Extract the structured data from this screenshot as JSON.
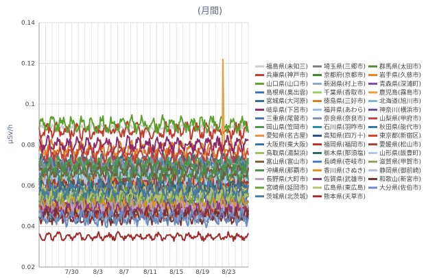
{
  "chart_data": {
    "type": "line",
    "title": "(月間)",
    "xlabel": "",
    "ylabel": "μSv/h",
    "ylim": [
      0.02,
      0.14
    ],
    "yticks": [
      "0.02",
      "0.04",
      "0.06",
      "0.08",
      "0.1",
      "0.12",
      "0.14"
    ],
    "xlim": [
      "7/25",
      "8/26"
    ],
    "xticks": [
      "7/30",
      "8/3",
      "8/7",
      "8/11",
      "8/15",
      "8/19",
      "8/23"
    ],
    "grid": true,
    "legend_position": "right",
    "series": [
      {
        "name": "福島県(未知三)",
        "color": "#cccccc",
        "base": 0.088,
        "amp": 0.002
      },
      {
        "name": "埼玉県(三郷市)",
        "color": "#7a7a7a",
        "base": 0.052,
        "amp": 0.004
      },
      {
        "name": "群馬県(太田市)",
        "color": "#4a8a3a",
        "base": 0.057,
        "amp": 0.004
      },
      {
        "name": "兵庫県(神戸市)",
        "color": "#c0392b",
        "base": 0.087,
        "amp": 0.004
      },
      {
        "name": "京都府(京都市)",
        "color": "#3f7f2a",
        "base": 0.065,
        "amp": 0.004
      },
      {
        "name": "岩手県(久慈市)",
        "color": "#e08020",
        "base": 0.064,
        "amp": 0.004
      },
      {
        "name": "山口県(山口市)",
        "color": "#5aa02c",
        "base": 0.09,
        "amp": 0.004
      },
      {
        "name": "新潟県(村上市)",
        "color": "#8aa5d0",
        "base": 0.07,
        "amp": 0.004
      },
      {
        "name": "青森県(深浦町)",
        "color": "#7a4a9a",
        "base": 0.064,
        "amp": 0.004
      },
      {
        "name": "島根県(奥出雲)",
        "color": "#3a6fb0",
        "base": 0.07,
        "amp": 0.004
      },
      {
        "name": "千葉県(香取市)",
        "color": "#9acd68",
        "base": 0.068,
        "amp": 0.004
      },
      {
        "name": "鹿児島(霧島市)",
        "color": "#e5a040",
        "base": 0.072,
        "amp": 0.004
      },
      {
        "name": "宮城県(大河原)",
        "color": "#2b6a8a",
        "base": 0.072,
        "amp": 0.004
      },
      {
        "name": "徳島県(三好市)",
        "color": "#e07a20",
        "base": 0.078,
        "amp": 0.004
      },
      {
        "name": "北海道(旭川市)",
        "color": "#7fb0d8",
        "base": 0.065,
        "amp": 0.004
      },
      {
        "name": "岐阜県(下呂市)",
        "color": "#8a2a6a",
        "base": 0.08,
        "amp": 0.004
      },
      {
        "name": "福井県(あわら)",
        "color": "#9ab8d8",
        "base": 0.058,
        "amp": 0.004
      },
      {
        "name": "神奈川(横浜市)",
        "color": "#6a4a8a",
        "base": 0.052,
        "amp": 0.004
      },
      {
        "name": "三重県(尾鷲市)",
        "color": "#4a6ab0",
        "base": 0.068,
        "amp": 0.004
      },
      {
        "name": "奈良県(奈良市)",
        "color": "#8090a0",
        "base": 0.07,
        "amp": 0.004
      },
      {
        "name": "山梨県(甲府市)",
        "color": "#c04040",
        "base": 0.075,
        "amp": 0.004
      },
      {
        "name": "岡山県(笠岡市)",
        "color": "#4a9a4a",
        "base": 0.07,
        "amp": 0.004
      },
      {
        "name": "石川県(羽咋市)",
        "color": "#2a8aa0",
        "base": 0.062,
        "amp": 0.004
      },
      {
        "name": "秋田県(能代市)",
        "color": "#2a7a9a",
        "base": 0.047,
        "amp": 0.004
      },
      {
        "name": "愛知県(名古屋)",
        "color": "#e89040",
        "base": 0.06,
        "amp": 0.004
      },
      {
        "name": "高知県(四万十)",
        "color": "#2a4a7a",
        "base": 0.046,
        "amp": 0.004
      },
      {
        "name": "東京都(新宿区)",
        "color": "#d04020",
        "base": 0.047,
        "amp": 0.004
      },
      {
        "name": "大阪府(東大阪)",
        "color": "#3a6aa0",
        "base": 0.06,
        "amp": 0.004
      },
      {
        "name": "福岡県(福岡市)",
        "color": "#b02a2a",
        "base": 0.049,
        "amp": 0.004
      },
      {
        "name": "愛媛県(松山市)",
        "color": "#a03a3a",
        "base": 0.061,
        "amp": 0.004
      },
      {
        "name": "鳥取県(湯梨浜)",
        "color": "#a0c060",
        "base": 0.053,
        "amp": 0.004
      },
      {
        "name": "栃木県(那須塩)",
        "color": "#2a6a6a",
        "base": 0.058,
        "amp": 0.004
      },
      {
        "name": "山形県(飯豊町)",
        "color": "#b0c8e0",
        "base": 0.065,
        "amp": 0.004
      },
      {
        "name": "富山県(富山市)",
        "color": "#7a5a3a",
        "base": 0.067,
        "amp": 0.004
      },
      {
        "name": "長崎県(壱岐市)",
        "color": "#4a7ab8",
        "base": 0.053,
        "amp": 0.004
      },
      {
        "name": "滋賀県(甲賀市)",
        "color": "#9a9a5a",
        "base": 0.048,
        "amp": 0.004
      },
      {
        "name": "沖縄県(那覇市)",
        "color": "#4a8a4a",
        "base": 0.066,
        "amp": 0.004
      },
      {
        "name": "香川県(さぬき)",
        "color": "#e09020",
        "base": 0.05,
        "amp": 0.004
      },
      {
        "name": "静岡県(御前崎)",
        "color": "#a8c0d8",
        "base": 0.045,
        "amp": 0.004
      },
      {
        "name": "長野県(大町市)",
        "color": "#c0a0c8",
        "base": 0.05,
        "amp": 0.004
      },
      {
        "name": "佐賀県(武雄市)",
        "color": "#8a3a7a",
        "base": 0.048,
        "amp": 0.004
      },
      {
        "name": "和歌山(新宮市)",
        "color": "#7a3030",
        "base": 0.045,
        "amp": 0.004
      },
      {
        "name": "宮崎県(延岡市)",
        "color": "#6aa040",
        "base": 0.055,
        "amp": 0.004
      },
      {
        "name": "広島県(東広島)",
        "color": "#b8c070",
        "base": 0.056,
        "amp": 0.004
      },
      {
        "name": "大分県(佐伯市)",
        "color": "#6a8ac0",
        "base": 0.044,
        "amp": 0.004
      },
      {
        "name": "茨城県(北茨城)",
        "color": "#4a7aa0",
        "base": 0.058,
        "amp": 0.004
      },
      {
        "name": "熊本県(天草市)",
        "color": "#a02a2a",
        "base": 0.035,
        "amp": 0.002
      }
    ]
  }
}
